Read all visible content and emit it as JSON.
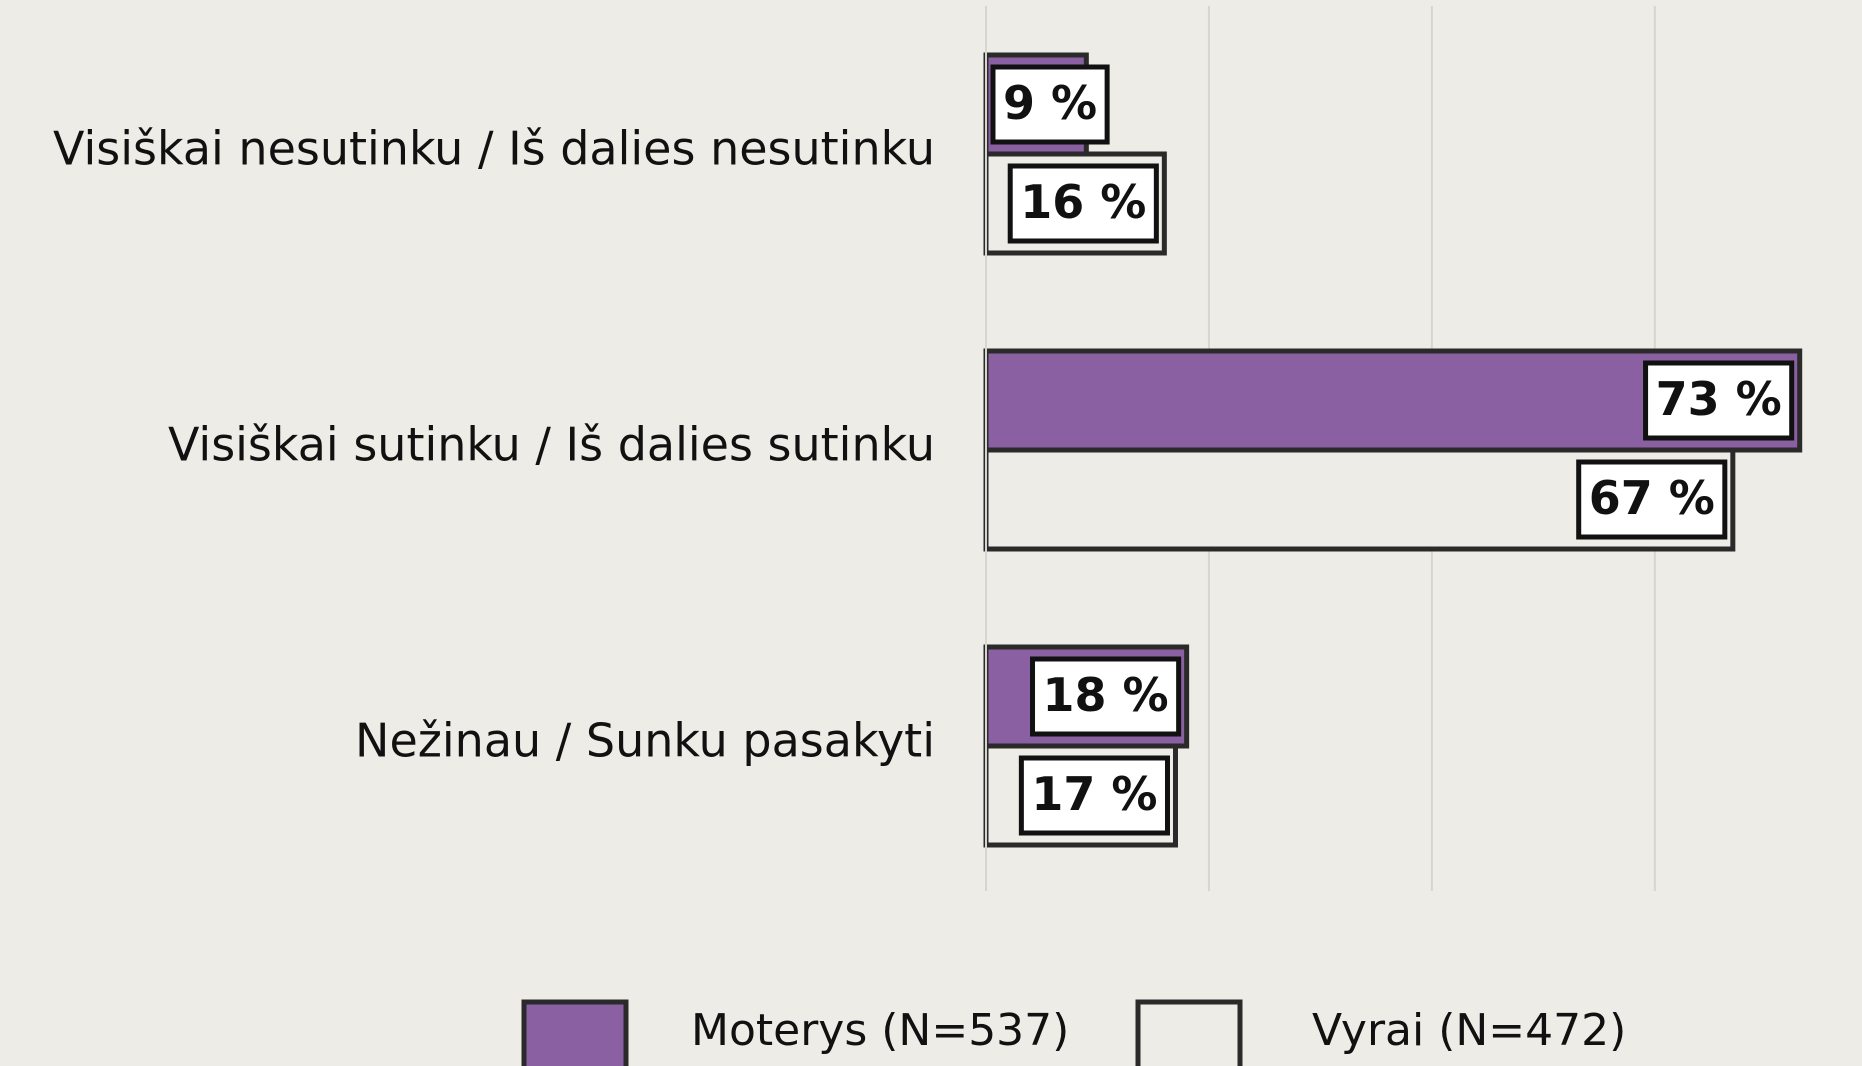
{
  "chart_data": {
    "type": "barh",
    "categories": [
      "Visiškai nesutinku / Iš dalies nesutinku",
      "Visiškai sutinku / Iš dalies sutinku",
      "Nežinau / Sunku pasakyti"
    ],
    "series": [
      {
        "name": "Moterys (N=537)",
        "color": "#8a60a3",
        "values": [
          9,
          73,
          18
        ],
        "value_labels": [
          "9 %",
          "73 %",
          "18 %"
        ]
      },
      {
        "name": "Vyrai (N=472)",
        "color": "#edece6",
        "values": [
          16,
          67,
          17
        ],
        "value_labels": [
          "16 %",
          "67 %",
          "17 %"
        ]
      }
    ],
    "xlim": [
      0,
      75
    ],
    "xticks": [
      0,
      20,
      40,
      60
    ],
    "grid": true
  }
}
